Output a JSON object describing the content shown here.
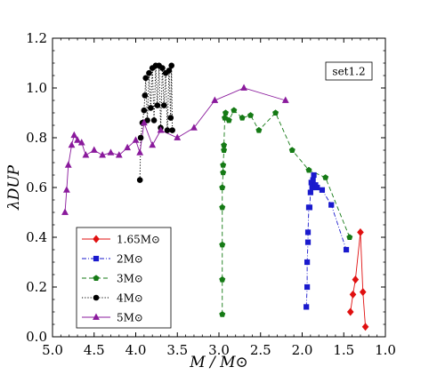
{
  "chart_data": {
    "type": "line",
    "xlabel": "M / M⊙",
    "ylabel": "λDUP",
    "xlim": [
      5.0,
      1.0
    ],
    "ylim": [
      0.0,
      1.2
    ],
    "x_ticks": [
      {
        "value": 5.0,
        "label": "5.0"
      },
      {
        "value": 4.5,
        "label": "4.5"
      },
      {
        "value": 4.0,
        "label": "4.0"
      },
      {
        "value": 3.5,
        "label": "3.5"
      },
      {
        "value": 3.0,
        "label": "3.0"
      },
      {
        "value": 2.5,
        "label": "2.5"
      },
      {
        "value": 2.0,
        "label": "2.0"
      },
      {
        "value": 1.5,
        "label": "1.5"
      },
      {
        "value": 1.0,
        "label": "1.0"
      }
    ],
    "y_ticks": [
      {
        "value": 0.0,
        "label": "0.0"
      },
      {
        "value": 0.2,
        "label": "0.2"
      },
      {
        "value": 0.4,
        "label": "0.4"
      },
      {
        "value": 0.6,
        "label": "0.6"
      },
      {
        "value": 0.8,
        "label": "0.8"
      },
      {
        "value": 1.0,
        "label": "1.0"
      },
      {
        "value": 1.2,
        "label": "1.2"
      }
    ],
    "annotation": "set1.2",
    "legend_position": "bottom-left",
    "series": [
      {
        "name": "1.65M⊙",
        "color": "#e01010",
        "marker": "diamond",
        "line": "solid",
        "x": [
          1.42,
          1.39,
          1.36,
          1.3,
          1.27,
          1.24
        ],
        "y": [
          0.1,
          0.17,
          0.23,
          0.42,
          0.18,
          0.04
        ]
      },
      {
        "name": "2M⊙",
        "color": "#1a1acd",
        "marker": "square",
        "line": "dashdot",
        "x": [
          1.95,
          1.94,
          1.94,
          1.93,
          1.93,
          1.92,
          1.91,
          1.9,
          1.88,
          1.89,
          1.87,
          1.86,
          1.84,
          1.82,
          1.76,
          1.65,
          1.47
        ],
        "y": [
          0.12,
          0.2,
          0.3,
          0.38,
          0.42,
          0.52,
          0.52,
          0.58,
          0.6,
          0.62,
          0.63,
          0.65,
          0.61,
          0.6,
          0.59,
          0.53,
          0.35
        ]
      },
      {
        "name": "3M⊙",
        "color": "#157a15",
        "marker": "pentagon",
        "line": "dashed",
        "x": [
          2.96,
          2.96,
          2.96,
          2.96,
          2.96,
          2.95,
          2.95,
          2.94,
          2.94,
          2.93,
          2.92,
          2.88,
          2.82,
          2.72,
          2.62,
          2.52,
          2.32,
          2.12,
          1.92,
          1.72,
          1.43
        ],
        "y": [
          0.09,
          0.23,
          0.37,
          0.52,
          0.6,
          0.66,
          0.69,
          0.75,
          0.77,
          0.88,
          0.9,
          0.87,
          0.91,
          0.88,
          0.89,
          0.83,
          0.9,
          0.75,
          0.67,
          0.64,
          0.4
        ]
      },
      {
        "name": "4M⊙",
        "color": "#000000",
        "marker": "circle",
        "line": "dotted",
        "x": [
          3.95,
          3.94,
          3.92,
          3.9,
          3.89,
          3.88,
          3.86,
          3.84,
          3.82,
          3.8,
          3.78,
          3.76,
          3.74,
          3.72,
          3.7,
          3.68,
          3.66,
          3.64,
          3.62,
          3.6,
          3.58,
          3.57,
          3.56
        ],
        "y": [
          0.63,
          0.8,
          0.86,
          0.91,
          0.97,
          1.04,
          0.87,
          1.06,
          0.92,
          1.08,
          0.87,
          1.09,
          0.93,
          1.09,
          0.84,
          1.08,
          0.93,
          1.06,
          0.83,
          1.07,
          0.88,
          1.09,
          0.83
        ]
      },
      {
        "name": "5M⊙",
        "color": "#8a1a9c",
        "marker": "triangle",
        "line": "solid",
        "x": [
          4.85,
          4.83,
          4.81,
          4.77,
          4.74,
          4.7,
          4.65,
          4.6,
          4.5,
          4.4,
          4.3,
          4.2,
          4.1,
          4.0,
          3.95,
          3.9,
          3.8,
          3.7,
          3.5,
          3.3,
          3.05,
          2.7,
          2.2
        ],
        "y": [
          0.5,
          0.59,
          0.69,
          0.77,
          0.81,
          0.79,
          0.78,
          0.73,
          0.75,
          0.73,
          0.74,
          0.73,
          0.76,
          0.79,
          0.74,
          0.86,
          0.77,
          0.83,
          0.8,
          0.84,
          0.95,
          1.0,
          0.95
        ]
      }
    ]
  }
}
